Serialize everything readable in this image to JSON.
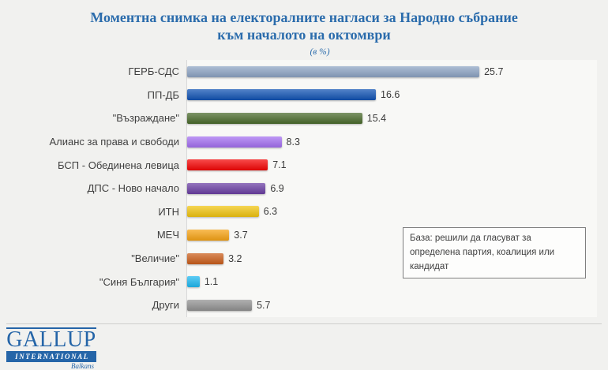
{
  "title": {
    "line1": "Моментна снимка на електоралните нагласи за Народно събрание",
    "line2": "към началото на октомври",
    "units_note": "(в %)"
  },
  "chart_data": {
    "type": "bar",
    "orientation": "horizontal",
    "title": "Моментна снимка на електоралните нагласи за Народно събрание към началото на октомври",
    "subtitle": "(в %)",
    "categories": [
      "ГЕРБ-СДС",
      "ПП-ДБ",
      "\"Възраждане\"",
      "Алианс за права и свободи",
      "БСП - Обединена левица",
      "ДПС - Ново начало",
      "ИТН",
      "МЕЧ",
      "\"Величие\"",
      "\"Синя България\"",
      "Други"
    ],
    "values": [
      25.7,
      16.6,
      15.4,
      8.3,
      7.1,
      6.9,
      6.3,
      3.7,
      3.2,
      1.1,
      5.7
    ],
    "bar_colors": [
      "#8da4c4",
      "#1153b4",
      "#4a6b2c",
      "#a46ff2",
      "#f50505",
      "#6b3fa4",
      "#f2c511",
      "#f7a314",
      "#cb5e1b",
      "#1fb9f2",
      "#929292"
    ],
    "xlabel": "",
    "ylabel": "",
    "xlim": [
      0,
      26
    ],
    "grid": false,
    "legend": false,
    "value_labels_shown": true
  },
  "annotation": {
    "text": "База: решили да гласуват за определена партия, коалиция или кандидат"
  },
  "logo": {
    "name": "GALLUP",
    "line2": "INTERNATIONAL",
    "line3": "Balkans"
  },
  "theme": {
    "title_color": "#2b6cac",
    "page_background": "#f1f1ef",
    "logo_blue": "#2565a8"
  }
}
